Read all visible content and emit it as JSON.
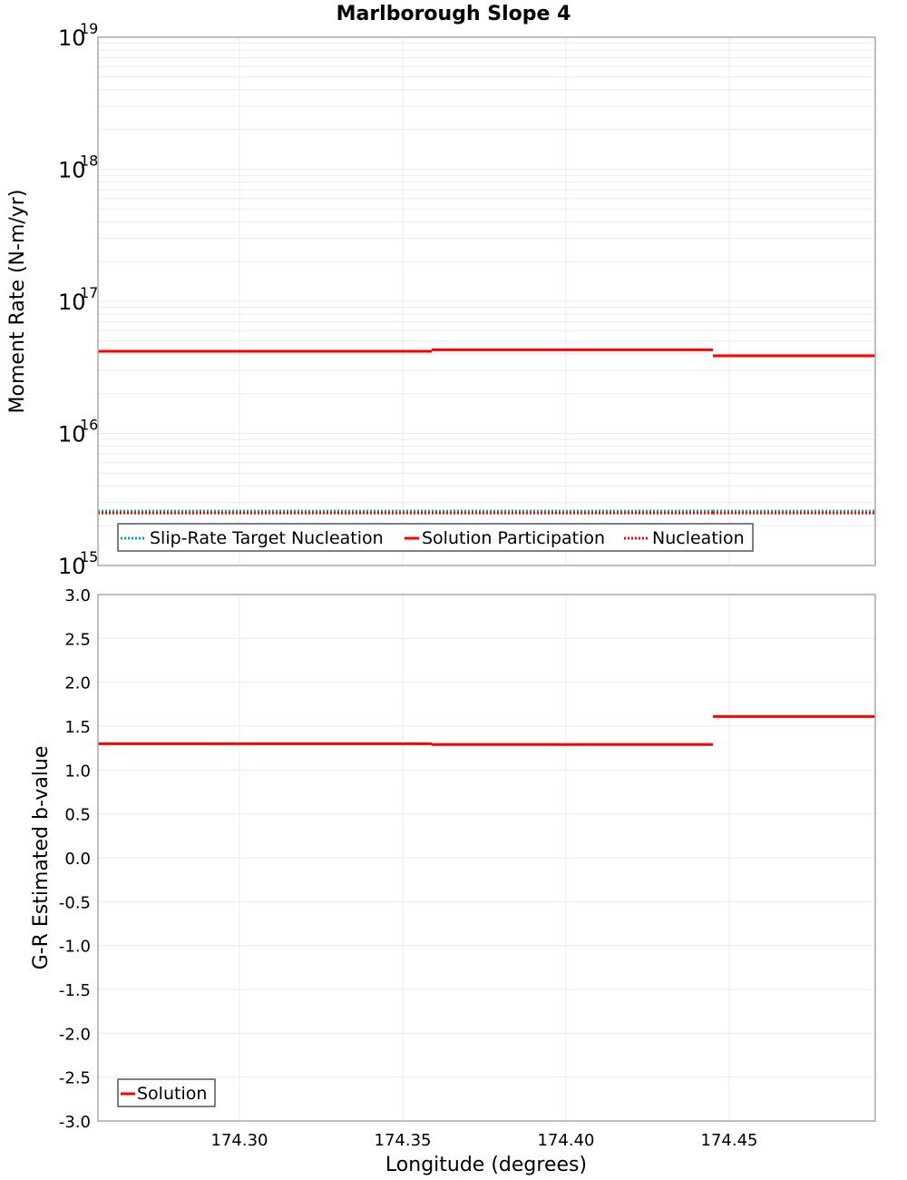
{
  "chart_data": [
    {
      "type": "line",
      "title": "Marlborough Slope 4",
      "xlabel": "Longitude (degrees)",
      "ylabel": "Moment Rate (N-m/yr)",
      "yscale": "log",
      "ylim": [
        1000000000000000.0,
        1e+19
      ],
      "xlim": [
        174.2567,
        174.4947
      ],
      "y_ticks": [
        {
          "base": "10",
          "exp": "19",
          "value": 1e+19
        },
        {
          "base": "10",
          "exp": "18",
          "value": 1e+18
        },
        {
          "base": "10",
          "exp": "17",
          "value": 1e+17
        },
        {
          "base": "10",
          "exp": "16",
          "value": 1e+16
        },
        {
          "base": "10",
          "exp": "15",
          "value": 1000000000000000.0
        }
      ],
      "grid": true,
      "legend_position": "lower-left",
      "series": [
        {
          "name": "Slip-Rate Target Nucleation",
          "style": "dotted",
          "color": "#00aabb",
          "segments": [
            {
              "x0": 174.2567,
              "x1": 174.3589,
              "y": 2580000000000000.0
            },
            {
              "x0": 174.3589,
              "x1": 174.445,
              "y": 2580000000000000.0
            },
            {
              "x0": 174.445,
              "x1": 174.4947,
              "y": 2580000000000000.0
            }
          ]
        },
        {
          "name": "Solution Participation",
          "style": "solid",
          "color": "#ff0000",
          "segments": [
            {
              "x0": 174.2567,
              "x1": 174.3589,
              "y": 4.19e+16
            },
            {
              "x0": 174.3589,
              "x1": 174.445,
              "y": 4.3e+16
            },
            {
              "x0": 174.445,
              "x1": 174.4947,
              "y": 3.87e+16
            }
          ]
        },
        {
          "name": "Nucleation",
          "style": "dotted",
          "color": "#ff0000",
          "segments": [
            {
              "x0": 174.2567,
              "x1": 174.3589,
              "y": 2500000000000000.0
            },
            {
              "x0": 174.3589,
              "x1": 174.445,
              "y": 2500000000000000.0
            },
            {
              "x0": 174.445,
              "x1": 174.4947,
              "y": 2500000000000000.0
            }
          ]
        }
      ]
    },
    {
      "type": "line",
      "title": "",
      "xlabel": "Longitude (degrees)",
      "ylabel": "G-R Estimated b-value",
      "ylim": [
        -3.0,
        3.0
      ],
      "xlim": [
        174.2567,
        174.4947
      ],
      "y_ticks": [
        "3.0",
        "2.5",
        "2.0",
        "1.5",
        "1.0",
        "0.5",
        "0.0",
        "-0.5",
        "-1.0",
        "-1.5",
        "-2.0",
        "-2.5",
        "-3.0"
      ],
      "x_ticks": [
        "174.30",
        "174.35",
        "174.40",
        "174.45"
      ],
      "grid": true,
      "legend_position": "lower-left",
      "series": [
        {
          "name": "Solution",
          "style": "solid",
          "color": "#ff0000",
          "segments": [
            {
              "x0": 174.2567,
              "x1": 174.3589,
              "y": 1.3
            },
            {
              "x0": 174.3589,
              "x1": 174.445,
              "y": 1.29
            },
            {
              "x0": 174.445,
              "x1": 174.4947,
              "y": 1.61
            }
          ]
        }
      ]
    }
  ],
  "labels": {
    "title": "Marlborough Slope 4",
    "top_ylabel": "Moment Rate (N-m/yr)",
    "bottom_ylabel": "G-R Estimated b-value",
    "xlabel": "Longitude (degrees)",
    "x_ticks": [
      "174.30",
      "174.35",
      "174.40",
      "174.45"
    ],
    "top_legend": [
      "Slip-Rate Target Nucleation",
      "Solution Participation",
      "Nucleation"
    ],
    "bottom_legend": [
      "Solution"
    ]
  },
  "colors": {
    "red": "#ff0000",
    "cyan": "#00aabb",
    "grid": "#ebebeb",
    "frame": "#aaaaaa"
  }
}
